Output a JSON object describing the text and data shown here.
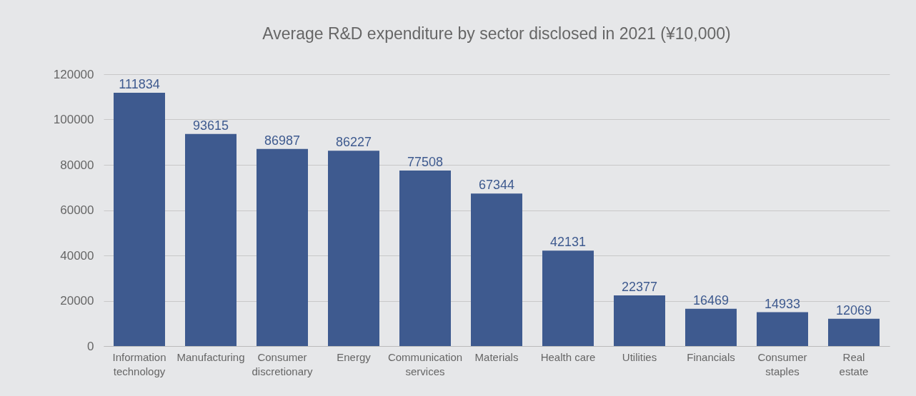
{
  "chart_data": {
    "type": "bar",
    "title": "Average R&D expenditure by sector disclosed in 2021 (¥10,000)",
    "categories": [
      "Information\ntechnology",
      "Manufacturing",
      "Consumer\ndiscretionary",
      "Energy",
      "Communication\nservices",
      "Materials",
      "Health care",
      "Utilities",
      "Financials",
      "Consumer\nstaples",
      "Real\nestate"
    ],
    "values": [
      111834,
      93615,
      86987,
      86227,
      77508,
      67344,
      42131,
      22377,
      16469,
      14933,
      12069
    ],
    "color": "#3e5a8f",
    "ylim": [
      0,
      120000
    ],
    "yticks": [
      0,
      20000,
      40000,
      60000,
      80000,
      100000,
      120000
    ],
    "grid": "y",
    "data_labels": true
  }
}
